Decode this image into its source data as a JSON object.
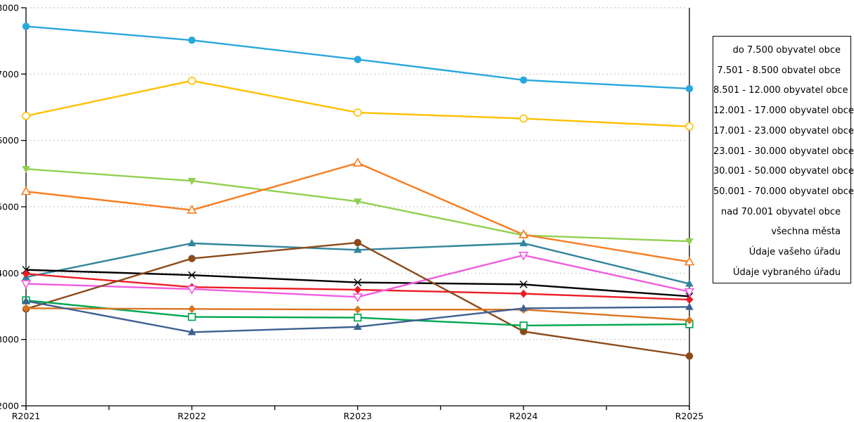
{
  "chart_data": {
    "type": "line",
    "title": "",
    "xlabel": "",
    "ylabel": "",
    "categories": [
      "R2021",
      "R2022",
      "R2023",
      "R2024",
      "R2025"
    ],
    "y_axis": {
      "min": 2000,
      "max": 8000,
      "step": 1000,
      "tick_labels": [
        "2000",
        "3000",
        "4000",
        "5000",
        "6000",
        "7000",
        "8000"
      ]
    },
    "grid": "horizontal-dotted",
    "gridline_color": "#c3c3c3",
    "axis_color": "#000000",
    "legend_position": "right",
    "series": [
      {
        "name": "do 7.500 obyvatel obce",
        "color": "#29a8dc",
        "marker": "circle",
        "values": [
          7720,
          7510,
          7220,
          6910,
          6780
        ]
      },
      {
        "name": "7.501 - 8.500 obvatel obce",
        "color": "#ffc000",
        "marker": "circle-open",
        "values": [
          6370,
          6900,
          6420,
          6330,
          6210
        ]
      },
      {
        "name": "8.501 - 12.000 obyvatel obce",
        "color": "#92d050",
        "marker": "triangle-down",
        "values": [
          5570,
          5390,
          5080,
          4570,
          4480
        ]
      },
      {
        "name": "12.001 - 17.000 obyvatel obce",
        "color": "#f87c1e",
        "marker": "triangle-up-open",
        "values": [
          5230,
          4950,
          5660,
          4580,
          4170
        ]
      },
      {
        "name": "17.001 - 23.000 obyvatel obce",
        "color": "#31859c",
        "marker": "triangle-up",
        "values": [
          3940,
          4450,
          4350,
          4450,
          3840
        ]
      },
      {
        "name": "23.001 - 30.000 obyvatel obce",
        "color": "#000000",
        "marker": "x",
        "values": [
          4050,
          3970,
          3860,
          3830,
          3650
        ]
      },
      {
        "name": "30.001 - 50.000 obyvatel obce",
        "color": "#ec1c24",
        "marker": "diamond",
        "values": [
          3990,
          3790,
          3750,
          3690,
          3600
        ]
      },
      {
        "name": "50.001 - 70.000 obyvatel obce",
        "color": "#f05ce0",
        "marker": "triangle-down-open",
        "values": [
          3840,
          3760,
          3640,
          4270,
          3720
        ]
      },
      {
        "name": "nad 70.001 obyvatel obce",
        "color": "#8b4a1a",
        "marker": "circle",
        "values": [
          3460,
          4220,
          4460,
          3120,
          2750
        ]
      },
      {
        "name": "všechna města",
        "color": "#00a651",
        "marker": "square-open",
        "values": [
          3590,
          3340,
          3330,
          3210,
          3230
        ]
      },
      {
        "name": "Údaje vašeho úřadu",
        "color": "#d97420",
        "marker": "diamond",
        "values": [
          3470,
          3460,
          3450,
          3450,
          3290
        ]
      },
      {
        "name": "Údaje vybraného úřadu",
        "color": "#3d6091",
        "marker": "triangle-up",
        "values": [
          3580,
          3110,
          3190,
          3470,
          3490
        ]
      }
    ]
  }
}
